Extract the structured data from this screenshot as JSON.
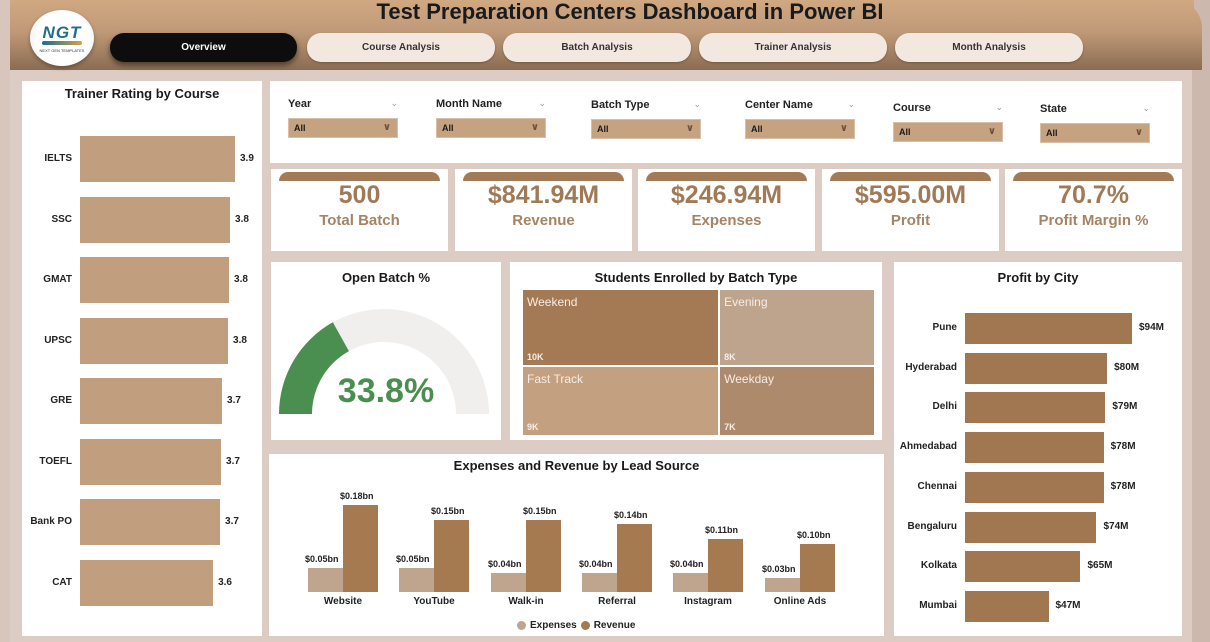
{
  "header": {
    "title": "Test Preparation Centers Dashboard in Power BI",
    "logo": {
      "text": "NGT",
      "subtext": "NEXT GEN TEMPLATES"
    },
    "tabs": [
      {
        "label": "Overview",
        "active": true
      },
      {
        "label": "Course Analysis",
        "active": false
      },
      {
        "label": "Batch Analysis",
        "active": false
      },
      {
        "label": "Trainer Analysis",
        "active": false
      },
      {
        "label": "Month Analysis",
        "active": false
      }
    ]
  },
  "slicers": [
    {
      "label": "Year",
      "value": "All"
    },
    {
      "label": "Month Name",
      "value": "All"
    },
    {
      "label": "Batch Type",
      "value": "All"
    },
    {
      "label": "Center Name",
      "value": "All"
    },
    {
      "label": "Course",
      "value": "All"
    },
    {
      "label": "State",
      "value": "All"
    }
  ],
  "icons": {
    "chevron": "chevron-down-icon"
  },
  "kpis": [
    {
      "value": "500",
      "label": "Total Batch"
    },
    {
      "value": "$841.94M",
      "label": "Revenue"
    },
    {
      "value": "$246.94M",
      "label": "Expenses"
    },
    {
      "value": "$595.00M",
      "label": "Profit"
    },
    {
      "value": "70.7%",
      "label": "Profit Margin %"
    }
  ],
  "colors": {
    "accent": "#a27a56",
    "bar_light": "#c09e7e",
    "bar_dark": "#a07751",
    "expenses": "#bfa58e",
    "revenue": "#a67a50",
    "gauge_fill": "#4a8f4f",
    "gauge_track": "#f0efee"
  },
  "chart_data": [
    {
      "id": "trainer_rating",
      "type": "bar",
      "orientation": "horizontal",
      "title": "Trainer Rating by Course",
      "categories": [
        "IELTS",
        "SSC",
        "GMAT",
        "UPSC",
        "GRE",
        "TOEFL",
        "Bank PO",
        "CAT"
      ],
      "values": [
        3.9,
        3.8,
        3.8,
        3.8,
        3.7,
        3.7,
        3.7,
        3.6
      ],
      "labels": [
        "3.9",
        "3.8",
        "3.8",
        "3.8",
        "3.7",
        "3.7",
        "3.7",
        "3.6"
      ],
      "xlim": [
        0,
        3.9
      ]
    },
    {
      "id": "open_batch",
      "type": "gauge",
      "title": "Open Batch %",
      "value": 33.8,
      "label": "33.8%",
      "range": [
        0,
        100
      ]
    },
    {
      "id": "students_by_batch",
      "type": "treemap",
      "title": "Students Enrolled by Batch Type",
      "items": [
        {
          "name": "Weekend",
          "value": 10,
          "label": "10K",
          "color": "#a47a54"
        },
        {
          "name": "Evening",
          "value": 8,
          "label": "8K",
          "color": "#bea48d"
        },
        {
          "name": "Fast Track",
          "value": 9,
          "label": "9K",
          "color": "#c3a080"
        },
        {
          "name": "Weekday",
          "value": 7,
          "label": "7K",
          "color": "#ad8a6b"
        }
      ]
    },
    {
      "id": "profit_by_city",
      "type": "bar",
      "orientation": "horizontal",
      "title": "Profit by City",
      "categories": [
        "Pune",
        "Hyderabad",
        "Delhi",
        "Ahmedabad",
        "Chennai",
        "Bengaluru",
        "Kolkata",
        "Mumbai"
      ],
      "values": [
        94,
        80,
        79,
        78,
        78,
        74,
        65,
        47
      ],
      "labels": [
        "$94M",
        "$80M",
        "$79M",
        "$78M",
        "$78M",
        "$74M",
        "$65M",
        "$47M"
      ],
      "unit": "$M",
      "xlim": [
        0,
        94
      ]
    },
    {
      "id": "exp_rev_by_lead",
      "type": "bar",
      "title": "Expenses and Revenue by Lead Source",
      "categories": [
        "Website",
        "YouTube",
        "Walk-in",
        "Referral",
        "Instagram",
        "Online Ads"
      ],
      "series": [
        {
          "name": "Expenses",
          "values": [
            0.05,
            0.05,
            0.04,
            0.04,
            0.04,
            0.03
          ],
          "labels": [
            "$0.05bn",
            "$0.05bn",
            "$0.04bn",
            "$0.04bn",
            "$0.04bn",
            "$0.03bn"
          ]
        },
        {
          "name": "Revenue",
          "values": [
            0.18,
            0.15,
            0.15,
            0.14,
            0.11,
            0.1
          ],
          "labels": [
            "$0.18bn",
            "$0.15bn",
            "$0.15bn",
            "$0.14bn",
            "$0.11bn",
            "$0.10bn"
          ]
        }
      ],
      "unit": "$bn",
      "legend": "bottom-center",
      "ylim": [
        0,
        0.18
      ]
    }
  ]
}
